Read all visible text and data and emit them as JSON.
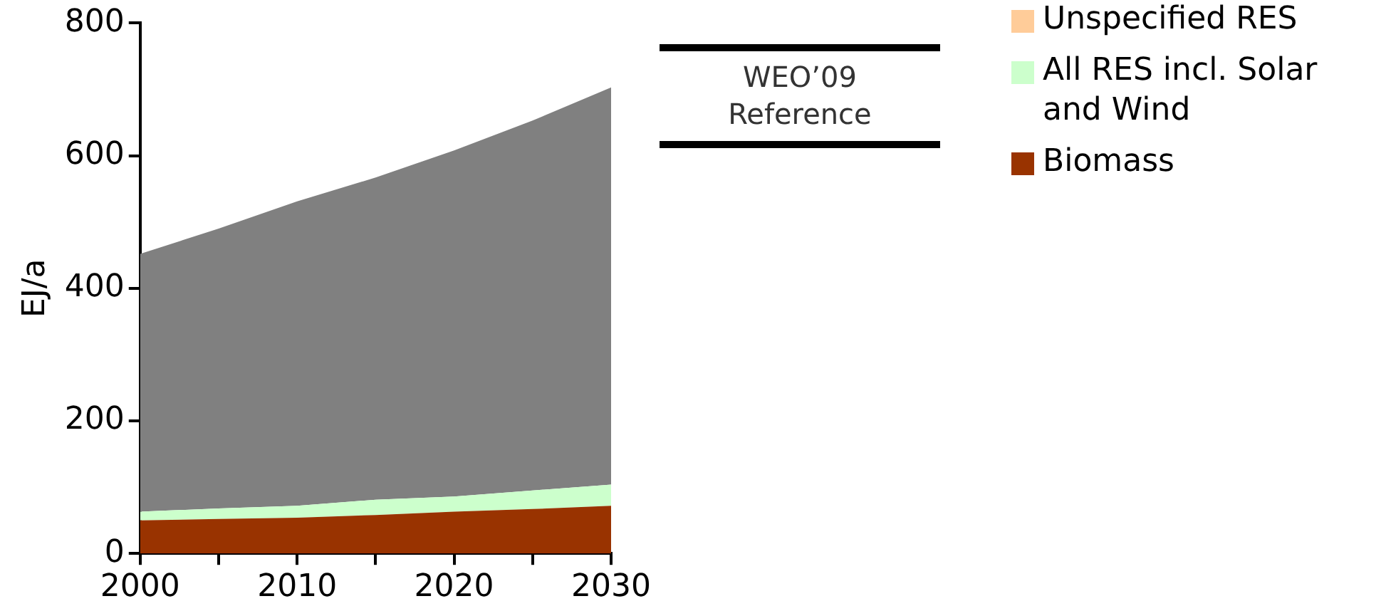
{
  "chart_data": {
    "type": "area",
    "stacked": true,
    "ylabel": "EJ/a",
    "x": [
      2000,
      2005,
      2010,
      2015,
      2020,
      2025,
      2030
    ],
    "xlim": [
      2000,
      2030
    ],
    "xticks": [
      2000,
      {
        "value": 2005,
        "label": null
      },
      2010,
      {
        "value": 2015,
        "label": null
      },
      2020,
      {
        "value": 2025,
        "label": null
      },
      2030
    ],
    "ylim": [
      0,
      800
    ],
    "yticks": [
      0,
      200,
      400,
      600,
      800
    ],
    "series": [
      {
        "name": "Biomass",
        "color": "#993300",
        "values": [
          50,
          52,
          54,
          58,
          63,
          67,
          72
        ]
      },
      {
        "name": "All RES incl. Solar and Wind",
        "color": "#ccffcc",
        "values": [
          13,
          16,
          18,
          23,
          23,
          28,
          32
        ]
      },
      {
        "name": "Unspecified RES",
        "color": "#ffcc99",
        "values": [
          null,
          null,
          null,
          null,
          null,
          null,
          null
        ]
      },
      {
        "color": "#808080",
        "values": [
          389,
          422,
          459,
          486,
          522,
          558,
          599
        ]
      }
    ],
    "annotations": [
      "WEO’09 Reference"
    ],
    "grid": false,
    "legend": "top right"
  }
}
